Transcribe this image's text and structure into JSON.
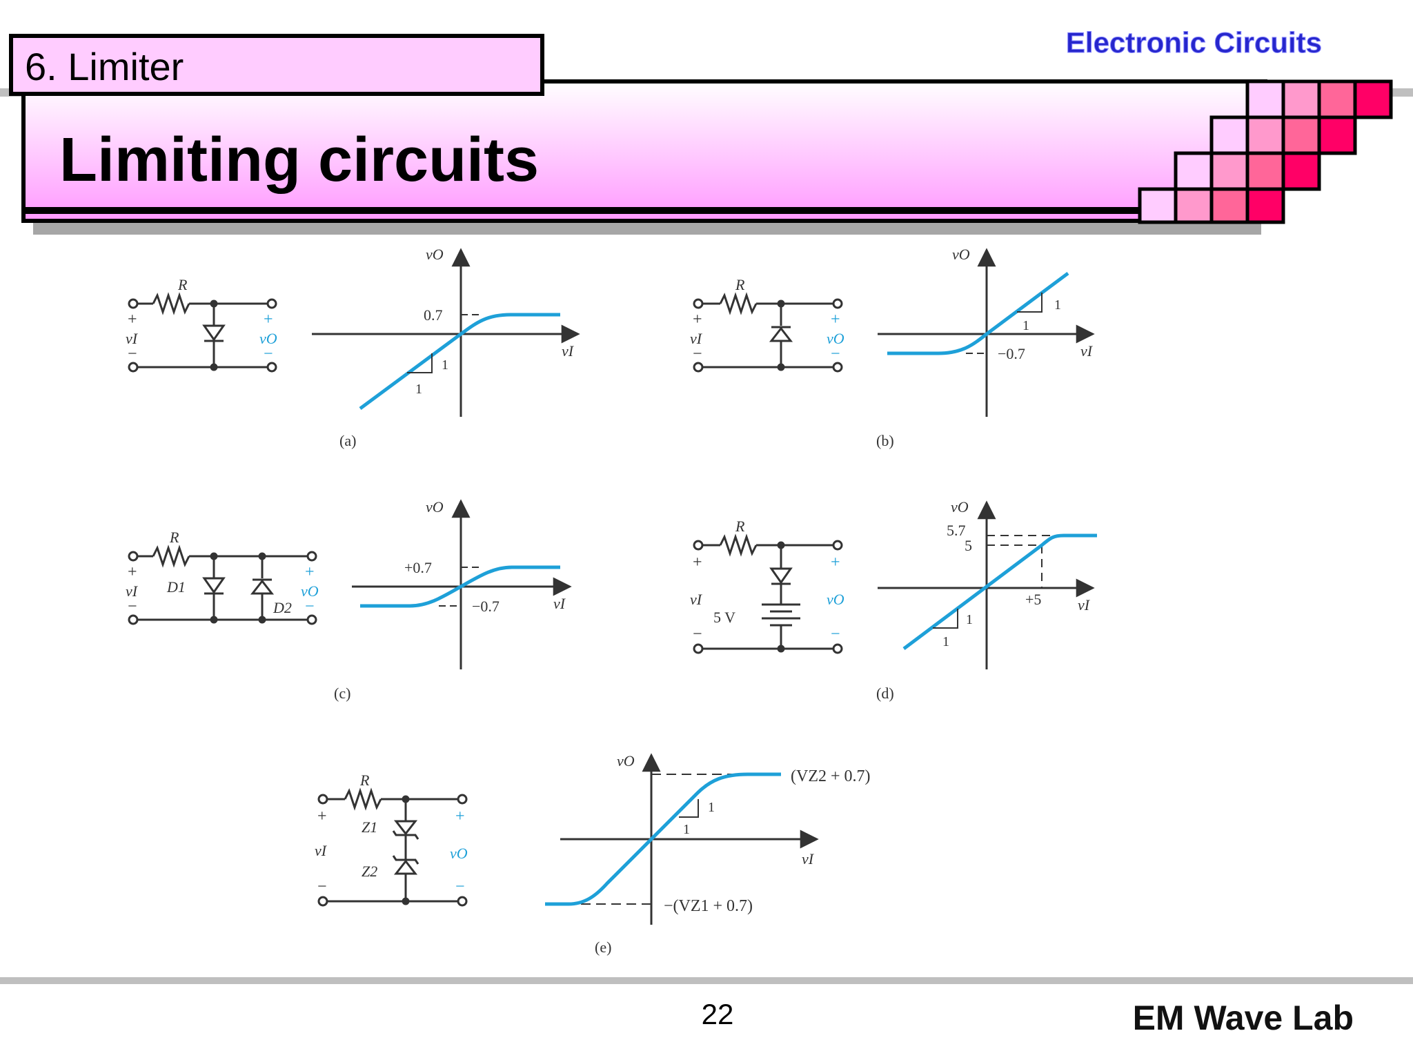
{
  "header": {
    "section": "6. Limiter",
    "title": "Limiting circuits",
    "course": "Electronic Circuits"
  },
  "footer": {
    "page_number": "22",
    "lab": "EM Wave Lab"
  },
  "colors": {
    "accent_pink": "#ff0080",
    "trace_blue": "#1ea0d8",
    "course_blue": "#2626cc"
  },
  "figure": {
    "a": {
      "caption": "(a)",
      "R": "R",
      "plus": "+",
      "minus": "−",
      "vin": "vI",
      "vout": "vO",
      "axis_y": "vO",
      "axis_x": "vI",
      "level": "0.7",
      "slope_run": "1",
      "slope_rise": "1"
    },
    "b": {
      "caption": "(b)",
      "R": "R",
      "plus": "+",
      "minus": "−",
      "vin": "vI",
      "vout": "vO",
      "axis_y": "vO",
      "axis_x": "vI",
      "level": "−0.7",
      "slope_run": "1",
      "slope_rise": "1"
    },
    "c": {
      "caption": "(c)",
      "R": "R",
      "plus": "+",
      "minus": "−",
      "vin": "vI",
      "vout": "vO",
      "d1": "D1",
      "d2": "D2",
      "axis_y": "vO",
      "axis_x": "vI",
      "pos_level": "+0.7",
      "neg_level": "−0.7"
    },
    "d": {
      "caption": "(d)",
      "R": "R",
      "plus": "+",
      "minus": "−",
      "vin": "vI",
      "vout": "vO",
      "battery": "5 V",
      "axis_y": "vO",
      "axis_x": "vI",
      "upper_level": "5.7",
      "lower_level": "5",
      "x_mark": "+5",
      "slope_run": "1",
      "slope_rise": "1"
    },
    "e": {
      "caption": "(e)",
      "R": "R",
      "plus": "+",
      "minus": "−",
      "vin": "vI",
      "vout": "vO",
      "z1": "Z1",
      "z2": "Z2",
      "axis_y": "vO",
      "axis_x": "vI",
      "pos_level": "(VZ2 + 0.7)",
      "neg_level": "−(VZ1 + 0.7)",
      "slope_run": "1",
      "slope_rise": "1"
    }
  }
}
